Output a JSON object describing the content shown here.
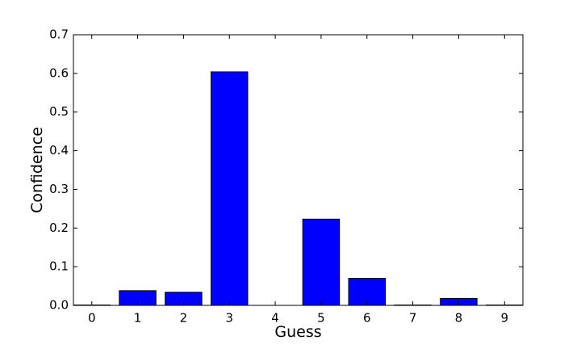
{
  "chart_data": {
    "type": "bar",
    "categories": [
      "0",
      "1",
      "2",
      "3",
      "4",
      "5",
      "6",
      "7",
      "8",
      "9"
    ],
    "values": [
      0.001,
      0.038,
      0.034,
      0.604,
      0.0,
      0.223,
      0.07,
      0.001,
      0.018,
      0.001
    ],
    "xlabel": "Guess",
    "ylabel": "Confidence",
    "ylim": [
      0,
      0.7
    ],
    "yticks": [
      "0.0",
      "0.1",
      "0.2",
      "0.3",
      "0.4",
      "0.5",
      "0.6",
      "0.7"
    ],
    "grid": false,
    "bar_color": "#0000ff",
    "edge_color": "#000000"
  }
}
